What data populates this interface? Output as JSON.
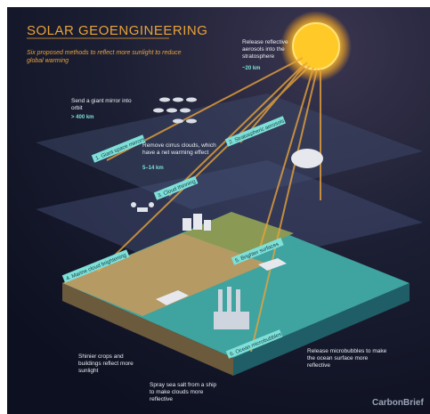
{
  "header": {
    "title": "SOLAR GEOENGINEERING",
    "subtitle": "Six proposed methods to reflect more sunlight to reduce global warming"
  },
  "annotations": [
    {
      "text": "Send a giant mirror into orbit",
      "detail": "> 400 km"
    },
    {
      "text": "Release reflective aerosols into the stratosphere",
      "detail": "~20 km"
    },
    {
      "text": "Remove cirrus clouds, which have a net warming effect",
      "detail": "5–14 km"
    },
    {
      "text": "Shinier crops and buildings reflect more sunlight"
    },
    {
      "text": "Spray sea salt from a ship to make clouds more reflective"
    },
    {
      "text": "Release microbubbles to make the ocean surface more reflective"
    }
  ],
  "methods": [
    "1. Giant space mirrors",
    "2. Stratospheric aerosols",
    "3. Cloud thinning",
    "4. Marine cloud brightening",
    "5. Brighter surfaces",
    "6. Ocean microbubbles"
  ],
  "footer": {
    "brand": "CarbonBrief"
  }
}
